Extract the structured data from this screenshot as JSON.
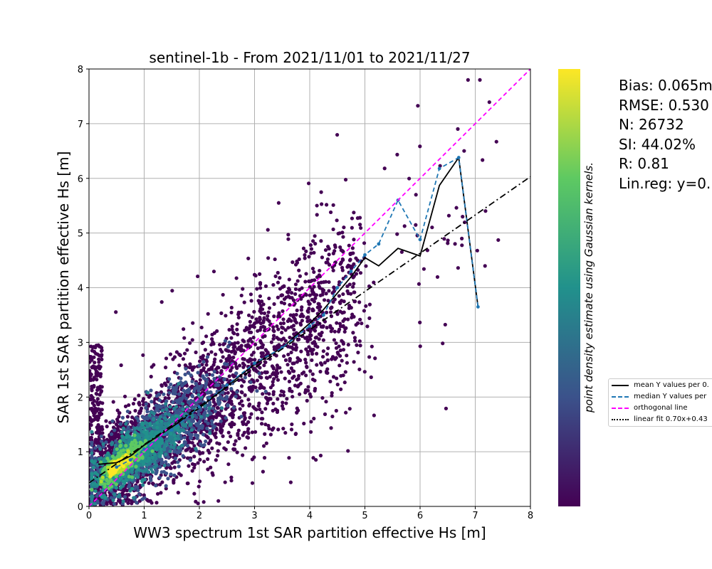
{
  "chart_data": {
    "type": "scatter",
    "title": "sentinel-1b - From 2021/11/01 to 2021/11/27",
    "xlabel": "WW3 spectrum 1st SAR partition effective Hs [m]",
    "ylabel": "SAR 1st SAR partition effective Hs [m]",
    "xlim": [
      0,
      8
    ],
    "ylim": [
      0,
      8
    ],
    "x_ticks": [
      "0",
      "1",
      "2",
      "3",
      "4",
      "5",
      "6",
      "7",
      "8"
    ],
    "y_ticks": [
      "0",
      "1",
      "2",
      "3",
      "4",
      "5",
      "6",
      "7",
      "8"
    ],
    "grid": true,
    "colorbar_label": "point density estimate using Gaussian kernels.",
    "colormap": [
      "#440154",
      "#3b528b",
      "#21918c",
      "#5ec962",
      "#fde725"
    ],
    "stats": [
      "Bias: 0.065m",
      "RMSE: 0.530",
      "N: 26732",
      "SI: 44.02%",
      "R: 0.81",
      "Lin.reg: y=0."
    ],
    "legend": {
      "placement": "right, outside plot",
      "entries": [
        "mean Y values per 0.",
        "median Y values per",
        "orthogonal line",
        "linear fit 0.70x+0.43"
      ]
    },
    "series": [
      {
        "name": "mean Y values per 0.",
        "color": "#000000",
        "style": "solid",
        "x": [
          0.17,
          0.5,
          0.75,
          1.0,
          1.5,
          2.0,
          2.5,
          3.0,
          3.5,
          4.0,
          4.25,
          4.5,
          4.75,
          5.0,
          5.25,
          5.6,
          6.0,
          6.35,
          6.7,
          7.05
        ],
        "y": [
          0.77,
          0.8,
          0.92,
          1.12,
          1.45,
          1.8,
          2.2,
          2.6,
          2.9,
          3.35,
          3.6,
          3.9,
          4.2,
          4.55,
          4.4,
          4.72,
          4.58,
          5.87,
          6.38,
          3.65
        ]
      },
      {
        "name": "median Y values per",
        "color": "#1f77b4",
        "style": "dashed",
        "x": [
          0.5,
          0.75,
          1.0,
          1.5,
          2.0,
          2.5,
          3.0,
          3.5,
          4.0,
          4.25,
          4.5,
          4.75,
          5.0,
          5.25,
          5.6,
          6.0,
          6.35,
          6.7,
          7.05
        ],
        "y": [
          0.72,
          0.85,
          1.05,
          1.4,
          1.82,
          2.22,
          2.62,
          2.9,
          3.3,
          3.5,
          4.0,
          4.3,
          4.6,
          4.8,
          5.6,
          4.88,
          6.18,
          6.38,
          3.65
        ]
      },
      {
        "name": "orthogonal line",
        "color": "#ff00ff",
        "style": "dashed",
        "x": [
          0,
          8
        ],
        "y": [
          0,
          8
        ]
      },
      {
        "name": "linear fit 0.70x+0.43",
        "color": "#000000",
        "style": "dashdot",
        "x": [
          0,
          8
        ],
        "y": [
          0.43,
          6.03
        ]
      }
    ]
  }
}
